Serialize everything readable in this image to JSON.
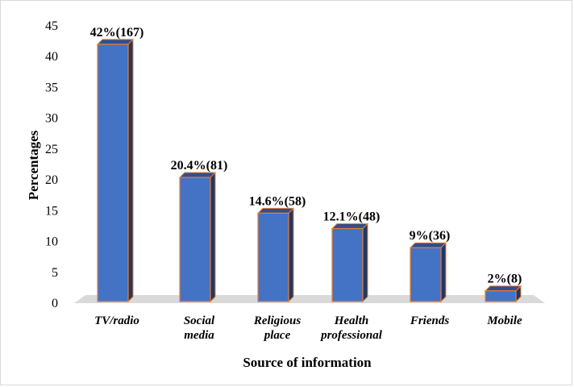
{
  "chart_data": {
    "type": "bar",
    "title": "",
    "xlabel": "Source of information",
    "ylabel": "Percentages",
    "ylim": [
      0,
      45
    ],
    "yticks": [
      0,
      5,
      10,
      15,
      20,
      25,
      30,
      35,
      40,
      45
    ],
    "categories": [
      [
        "TV/radio"
      ],
      [
        "Social",
        "media"
      ],
      [
        "Religious",
        "place"
      ],
      [
        "Health",
        "professional"
      ],
      [
        "Friends"
      ],
      [
        "Mobile"
      ]
    ],
    "values": [
      42,
      20.4,
      14.6,
      12.1,
      9,
      2
    ],
    "labels": [
      "42%(167)",
      "20.4%(81)",
      "14.6%(58)",
      "12.1%(48)",
      "9%(36)",
      "2%(8)"
    ],
    "grid": false,
    "legend": "none",
    "bar_color": "#4472c4",
    "bar_top_color": "#2f4f8f",
    "bar_side_color": "#1f3864",
    "bar_edge_color": "#ed7d31",
    "floor_color": "#d9d9d9"
  }
}
